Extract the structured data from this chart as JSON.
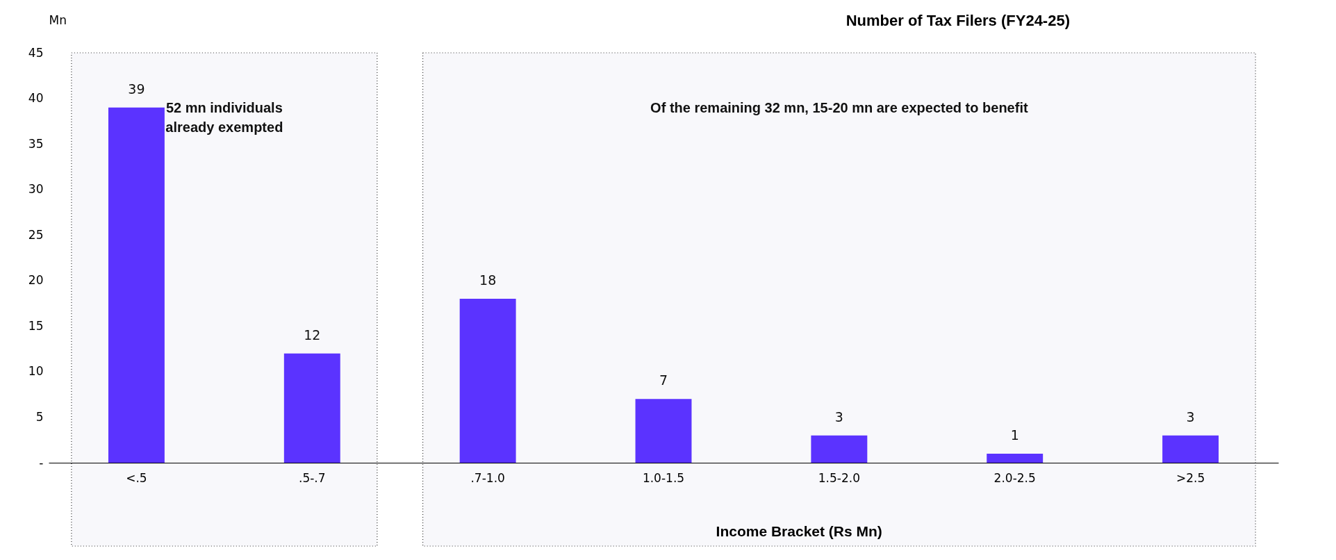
{
  "chart_data": {
    "type": "bar",
    "title": "Number of Tax Filers (FY24-25)",
    "xlabel": "Income Bracket (Rs Mn)",
    "ylabel": "Mn",
    "categories": [
      "<.5",
      ".5-.7",
      ".7-1.0",
      "1.0-1.5",
      "1.5-2.0",
      "2.0-2.5",
      ">2.5"
    ],
    "values": [
      39,
      12,
      18,
      7,
      3,
      1,
      3
    ],
    "color": "#5b33ff",
    "data_labels": true,
    "grid": false,
    "ylim": [
      0,
      45
    ],
    "yticks": [
      {
        "value": 0,
        "label": "-"
      },
      5,
      10,
      15,
      20,
      25,
      30,
      35,
      40,
      45
    ],
    "bands": [
      {
        "axis": "x",
        "from": "<.5",
        "to": ".5-.7",
        "label": "52 mn individuals\nalready exempted",
        "color": "#f8f8fb"
      },
      {
        "axis": "x",
        "from": ".7-1.0",
        "to": ">2.5",
        "label": "Of the remaining 32 mn, 15-20 mn are expected to benefit",
        "color": "#f8f8fb"
      }
    ]
  }
}
